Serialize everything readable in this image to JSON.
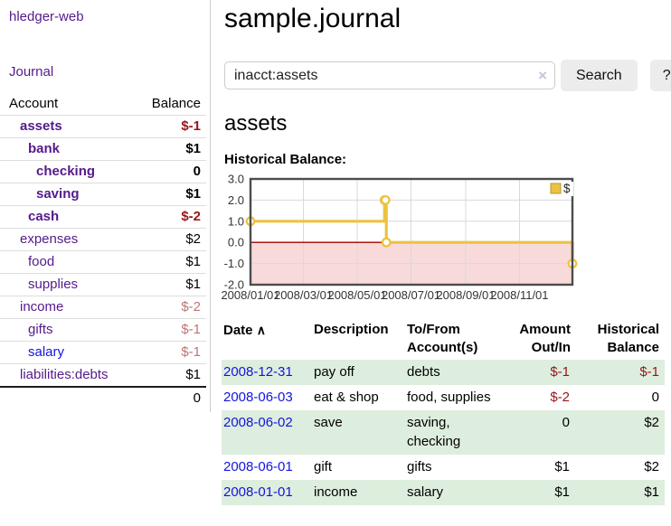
{
  "sidebar": {
    "app_title": "hledger-web",
    "journal_link": "Journal",
    "accounts_header": {
      "account": "Account",
      "balance": "Balance"
    },
    "accounts": [
      {
        "label": "assets",
        "depth": 0,
        "bold": true,
        "balance": "$-1",
        "tone": "neg-strong",
        "blue": false
      },
      {
        "label": "bank",
        "depth": 1,
        "bold": true,
        "balance": "$1",
        "tone": "",
        "blue": false
      },
      {
        "label": "checking",
        "depth": 2,
        "bold": true,
        "balance": "0",
        "tone": "",
        "blue": false
      },
      {
        "label": "saving",
        "depth": 2,
        "bold": true,
        "balance": "$1",
        "tone": "",
        "blue": false
      },
      {
        "label": "cash",
        "depth": 1,
        "bold": true,
        "balance": "$-2",
        "tone": "neg-strong",
        "blue": false
      },
      {
        "label": "expenses",
        "depth": 0,
        "bold": false,
        "balance": "$2",
        "tone": "",
        "blue": false
      },
      {
        "label": "food",
        "depth": 1,
        "bold": false,
        "balance": "$1",
        "tone": "",
        "blue": false
      },
      {
        "label": "supplies",
        "depth": 1,
        "bold": false,
        "balance": "$1",
        "tone": "",
        "blue": false
      },
      {
        "label": "income",
        "depth": 0,
        "bold": false,
        "balance": "$-2",
        "tone": "neg-soft",
        "blue": false
      },
      {
        "label": "gifts",
        "depth": 1,
        "bold": false,
        "balance": "$-1",
        "tone": "neg-soft",
        "blue": false
      },
      {
        "label": "salary",
        "depth": 1,
        "bold": false,
        "balance": "$-1",
        "tone": "neg-soft",
        "blue": true
      },
      {
        "label": "liabilities:debts",
        "depth": 0,
        "bold": false,
        "balance": "$1",
        "tone": "",
        "blue": false
      }
    ],
    "total": "0"
  },
  "main": {
    "title": "sample.journal",
    "search": {
      "value": "inacct:assets",
      "clear_icon": "×",
      "search_button": "Search",
      "help_button": "?"
    },
    "account_heading": "assets",
    "chart_label": "Historical Balance:"
  },
  "register": {
    "headers": {
      "date": "Date",
      "sort_icon": "∧",
      "description": "Description",
      "accounts1": "To/From",
      "accounts2": "Account(s)",
      "amount1": "Amount",
      "amount2": "Out/In",
      "balance1": "Historical",
      "balance2": "Balance"
    },
    "rows": [
      {
        "date": "2008-12-31",
        "description": "pay off",
        "accounts": "debts",
        "amount": "$-1",
        "amount_negative": true,
        "balance": "$-1",
        "balance_negative": true
      },
      {
        "date": "2008-06-03",
        "description": "eat & shop",
        "accounts": "food, supplies",
        "amount": "$-2",
        "amount_negative": true,
        "balance": "0",
        "balance_negative": false
      },
      {
        "date": "2008-06-02",
        "description": "save",
        "accounts": "saving, checking",
        "amount": "0",
        "amount_negative": false,
        "balance": "$2",
        "balance_negative": false
      },
      {
        "date": "2008-06-01",
        "description": "gift",
        "accounts": "gifts",
        "amount": "$1",
        "amount_negative": false,
        "balance": "$2",
        "balance_negative": false
      },
      {
        "date": "2008-01-01",
        "description": "income",
        "accounts": "salary",
        "amount": "$1",
        "amount_negative": false,
        "balance": "$1",
        "balance_negative": false
      }
    ]
  },
  "chart_data": {
    "type": "line",
    "step": true,
    "title": "Historical Balance:",
    "series": [
      {
        "name": "$",
        "color": "#edc240",
        "points": [
          [
            "2008-01-01",
            1
          ],
          [
            "2008-06-01",
            2
          ],
          [
            "2008-06-02",
            2
          ],
          [
            "2008-06-03",
            0
          ],
          [
            "2008-12-31",
            -1
          ]
        ]
      }
    ],
    "x_range": [
      "2008-01-01",
      "2008-12-31"
    ],
    "ylim": [
      -2,
      3
    ],
    "yticks": [
      3,
      2,
      1,
      0,
      -1,
      -2
    ],
    "ytick_labels": [
      "3.0",
      "2.0",
      "1.0",
      "0.0",
      "-1.0",
      "-2.0"
    ],
    "xtick_labels": [
      "2008/01/01",
      "2008/03/01",
      "2008/05/01",
      "2008/07/01",
      "2008/09/01",
      "2008/11/01"
    ],
    "grid": true,
    "legend": {
      "label": "$",
      "position": "top-right"
    },
    "colors": {
      "negative_fill": "#f9dada",
      "zero_line": "#a30000",
      "gridline": "#d9d9d9",
      "border": "#4c4c4c",
      "marker_fill": "#ffffff"
    }
  }
}
